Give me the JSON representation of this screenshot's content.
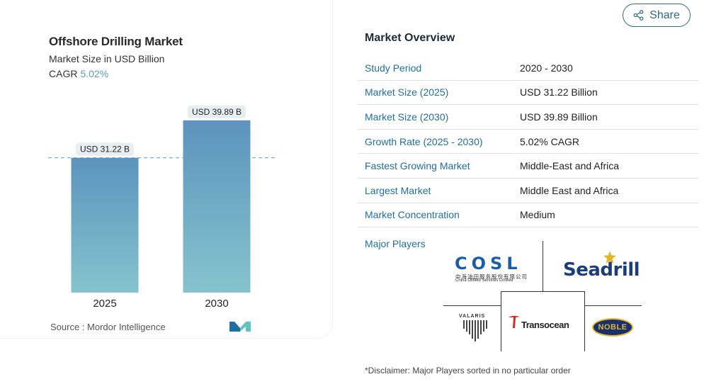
{
  "chart_data": {
    "type": "bar",
    "title": "Offshore Drilling Market",
    "subtitle": "Market Size in USD Billion",
    "cagr_label": "CAGR",
    "cagr_value": "5.02%",
    "categories": [
      "2025",
      "2030"
    ],
    "values": [
      31.22,
      39.89
    ],
    "data_labels": [
      "USD 31.22 B",
      "USD 39.89 B"
    ],
    "ylim": [
      0,
      42
    ],
    "grid": false,
    "reference_line": 31.22,
    "colors": {
      "bar_top": "#5d93bd",
      "bar_bottom": "#86c3cd",
      "label_bg": "#e7eef2",
      "dash": "#5b9bc4"
    }
  },
  "source": "Source :  Mordor Intelligence",
  "share": {
    "label": "Share",
    "icon": "share-icon"
  },
  "overview": {
    "title": "Market Overview",
    "rows": [
      {
        "label": "Study Period",
        "value": "2020 - 2030"
      },
      {
        "label": "Market Size (2025)",
        "value": "USD 31.22 Billion"
      },
      {
        "label": "Market Size (2030)",
        "value": "USD 39.89 Billion"
      },
      {
        "label": "Growth Rate (2025 - 2030)",
        "value": "5.02% CAGR"
      },
      {
        "label": "Fastest Growing Market",
        "value": "Middle-East and Africa"
      },
      {
        "label": "Largest Market",
        "value": "Middle East and Africa"
      },
      {
        "label": "Market Concentration",
        "value": "Medium"
      }
    ]
  },
  "major_players": {
    "label": "Major Players",
    "cosl": {
      "name": "COSL",
      "cn": "中海油田服务股份有限公司",
      "en": "China Oilfield Services Limited"
    },
    "seadrill": "Seadrill",
    "valaris": "VALARIS",
    "transocean": "Transocean",
    "noble": "NOBLE"
  },
  "disclaimer": "*Disclaimer: Major Players sorted in no particular order"
}
